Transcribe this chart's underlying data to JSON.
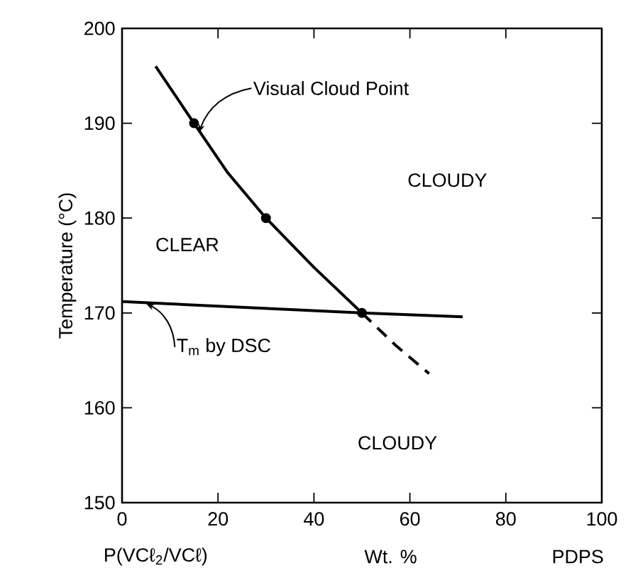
{
  "chart_data": {
    "type": "line",
    "xlabel": "Wt. %",
    "ylabel": "Temperature (°C)",
    "xlim": [
      0,
      100
    ],
    "ylim": [
      150,
      200
    ],
    "xticks": [
      0,
      20,
      40,
      60,
      80,
      100
    ],
    "yticks": [
      150,
      160,
      170,
      180,
      190,
      200
    ],
    "series": [
      {
        "color": "#000000",
        "x": [
          7,
          15,
          22,
          30,
          40,
          50
        ],
        "values": [
          196,
          190,
          184.8,
          180,
          174.8,
          170
        ],
        "line_style": "solid",
        "marker": "none"
      },
      {
        "color": "#000000",
        "x": [
          50,
          57,
          64
        ],
        "values": [
          170,
          166.6,
          163.6
        ],
        "line_style": "dashed",
        "marker": "none"
      },
      {
        "type": "scatter",
        "color": "#000000",
        "x": [
          15,
          30,
          50
        ],
        "values": [
          190,
          180,
          170
        ],
        "marker": "circle"
      },
      {
        "color": "#000000",
        "x": [
          0,
          50,
          71
        ],
        "values": [
          171.2,
          170,
          169.6
        ],
        "line_style": "solid",
        "marker": "none"
      }
    ],
    "annotations": [
      {
        "text": "Visual Cloud Point",
        "x": 16,
        "y": 189
      },
      {
        "text": "T$_{m}$ by DSC",
        "x": 5,
        "y": 171
      },
      "CLEAR",
      "CLOUDY",
      "CLOUDY",
      "P(VCℓ$_{2}$/VCℓ)",
      "PDPS"
    ]
  }
}
